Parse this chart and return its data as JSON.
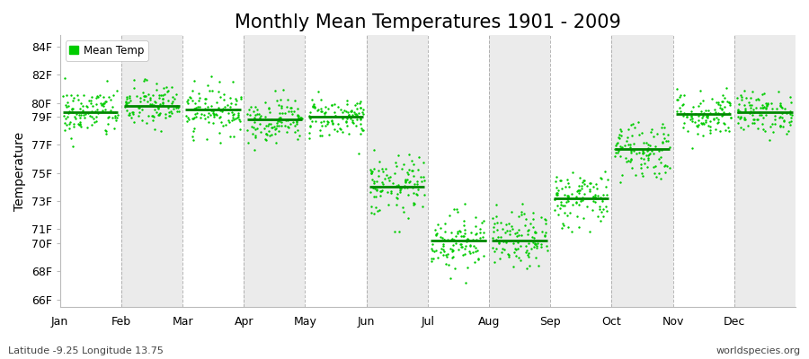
{
  "title": "Monthly Mean Temperatures 1901 - 2009",
  "ylabel": "Temperature",
  "xlabel_months": [
    "Jan",
    "Feb",
    "Mar",
    "Apr",
    "May",
    "Jun",
    "Jul",
    "Aug",
    "Sep",
    "Oct",
    "Nov",
    "Dec"
  ],
  "yticks": [
    66,
    68,
    70,
    71,
    73,
    75,
    77,
    79,
    80,
    82,
    84
  ],
  "ytick_labels": [
    "66F",
    "68F",
    "70F",
    "71F",
    "73F",
    "75F",
    "77F",
    "79F",
    "80F",
    "82F",
    "84F"
  ],
  "ylim": [
    65.5,
    84.8
  ],
  "monthly_means": [
    79.3,
    79.8,
    79.5,
    78.8,
    79.0,
    74.0,
    70.2,
    70.2,
    73.2,
    76.7,
    79.2,
    79.3
  ],
  "monthly_std": [
    0.9,
    0.85,
    0.85,
    0.8,
    0.75,
    1.1,
    1.05,
    1.0,
    1.05,
    1.1,
    0.85,
    0.75
  ],
  "n_years": 109,
  "dot_color": "#00CC00",
  "mean_line_color": "#008800",
  "background_color": "#FFFFFF",
  "band_color_odd": "#EBEBEB",
  "grid_color": "#888888",
  "title_fontsize": 15,
  "axis_label_fontsize": 10,
  "tick_fontsize": 9,
  "subtitle_left": "Latitude -9.25 Longitude 13.75",
  "subtitle_right": "worldspecies.org",
  "legend_label": "Mean Temp",
  "seed": 42
}
